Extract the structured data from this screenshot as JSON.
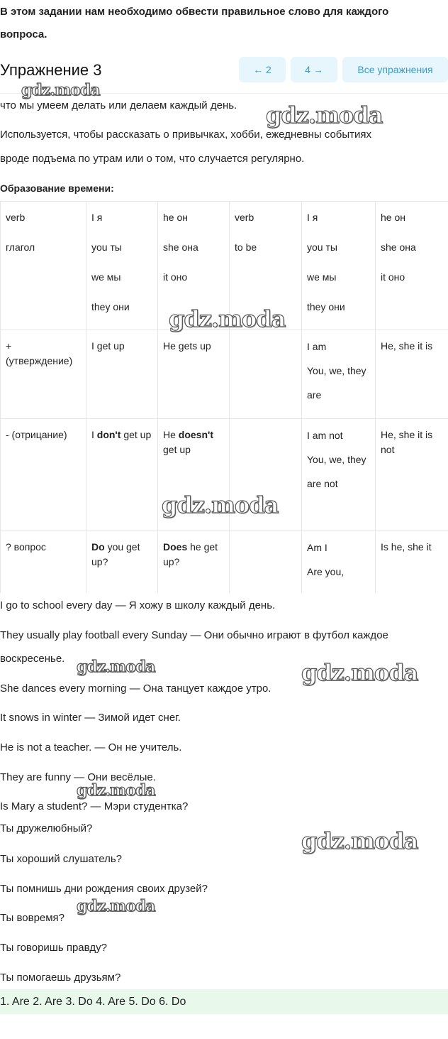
{
  "intro": "В этом задании нам необходимо обвести правильное слово для каждого",
  "intro2": "вопроса.",
  "title": "Упражнение 3",
  "nav": {
    "prev": "← 2",
    "next": "4 →",
    "all": "Все упражнения"
  },
  "text": {
    "l1": "что мы умеем делать или делаем каждый день.",
    "l2": "Используется, чтобы рассказать о привычках, хобби, ежедневны событиях",
    "l3": "вроде подъема по утрам или о том, что случается регулярно.",
    "l4": "Образование времени:"
  },
  "table": {
    "h": [
      [
        "verb",
        "глагол"
      ],
      [
        "I я",
        "you ты",
        "we мы",
        "they они"
      ],
      [
        "he он",
        "she она",
        "it оно"
      ],
      [
        "verb",
        "to be"
      ],
      [
        "I я",
        "you ты",
        "we мы",
        "they они"
      ],
      [
        "he он",
        "she она",
        "it оно"
      ]
    ],
    "r1": [
      "+ (утверждение)",
      "I get up",
      "He gets up",
      "",
      "I am|You, we, they are",
      "He, she it is"
    ],
    "r2": [
      "- (отрицание)",
      "I",
      "don't",
      "get up",
      "He",
      "doesn't",
      "get up",
      "",
      "I am not|You, we, they are not",
      "He, she it is not"
    ],
    "r3": [
      "? вопрос",
      "Do",
      "you get up?",
      "Does",
      "he get up?",
      "",
      "Am I|Are you,",
      "Is he, she it"
    ]
  },
  "sentences": [
    "I go to school every day — Я хожу в школу каждый день.",
    "They usually play football every Sunday — Они обычно играют в футбол каждое",
    "воскресенье.",
    "She dances every morning — Она танцует каждое утро.",
    "It snows in winter — Зимой идет снег.",
    "He is not a teacher. — Он не учитель.",
    "They are funny — Они весёлые.",
    "Is Mary a student? — Мэри студентка?",
    "Ты дружелюбный?",
    "Ты хороший слушатель?",
    "Ты помнишь дни рождения своих друзей?",
    "Ты вовремя?",
    "Ты говоришь правду?",
    "Ты помогаешь друзьям?"
  ],
  "answer": "1. Are 2. Are 3. Do 4. Are 5. Do 6. Do",
  "watermark": "gdz.moda",
  "colors": {
    "nav_bg": "#e6f6fc",
    "nav_text": "#3a9cc8",
    "answer_bg": "#e8f9ec"
  }
}
